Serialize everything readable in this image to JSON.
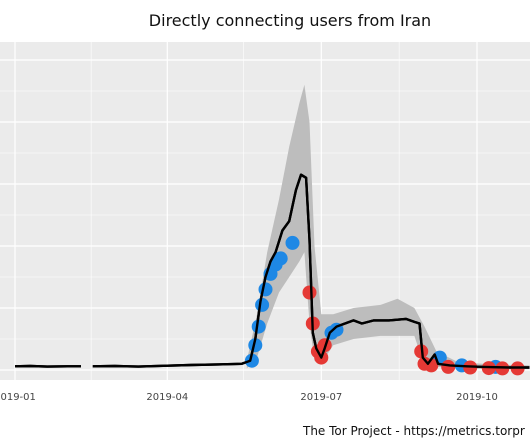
{
  "chart_data": {
    "type": "line",
    "title": "Directly connecting users from Iran",
    "xlabel": "",
    "ylabel": "",
    "caption": "The Tor Project - https://metrics.torpr",
    "x_ticks": [
      "2019-01",
      "2019-04",
      "2019-07",
      "2019-10"
    ],
    "y_tick_labels_visible": false,
    "grid": true,
    "panel_background": "#ebebeb",
    "grid_color": "#ffffff",
    "line_color": "#000000",
    "range_color": "#bdbdbd",
    "colors": {
      "upper_outlier": "#1e88e5",
      "lower_outlier": "#e53935"
    },
    "ylim": [
      0,
      100
    ],
    "series": [
      {
        "type": "line",
        "points": [
          [
            "2019-01-01",
            1.2
          ],
          [
            "2019-01-10",
            1.3
          ],
          [
            "2019-01-20",
            1.1
          ],
          [
            "2019-02-01",
            1.2
          ],
          [
            "2019-02-09",
            1.2
          ],
          [
            "2019-02-13",
            null
          ],
          [
            "2019-02-16",
            1.2
          ],
          [
            "2019-03-01",
            1.3
          ],
          [
            "2019-03-15",
            1.1
          ],
          [
            "2019-04-01",
            1.4
          ],
          [
            "2019-04-15",
            1.6
          ],
          [
            "2019-05-01",
            1.8
          ],
          [
            "2019-05-15",
            2.0
          ],
          [
            "2019-05-20",
            3.0
          ],
          [
            "2019-05-23",
            10.0
          ],
          [
            "2019-05-26",
            22.0
          ],
          [
            "2019-05-29",
            30.0
          ],
          [
            "2019-06-01",
            35.0
          ],
          [
            "2019-06-04",
            38.0
          ],
          [
            "2019-06-08",
            45.0
          ],
          [
            "2019-06-12",
            48.0
          ],
          [
            "2019-06-16",
            58.0
          ],
          [
            "2019-06-19",
            63.0
          ],
          [
            "2019-06-22",
            62.0
          ],
          [
            "2019-06-24",
            42.0
          ],
          [
            "2019-06-26",
            12.0
          ],
          [
            "2019-06-28",
            7.0
          ],
          [
            "2019-07-01",
            4.0
          ],
          [
            "2019-07-03",
            7.0
          ],
          [
            "2019-07-06",
            12.0
          ],
          [
            "2019-07-10",
            14.0
          ],
          [
            "2019-07-15",
            15.0
          ],
          [
            "2019-07-20",
            16.0
          ],
          [
            "2019-07-25",
            15.0
          ],
          [
            "2019-08-01",
            16.0
          ],
          [
            "2019-08-10",
            16.0
          ],
          [
            "2019-08-20",
            16.5
          ],
          [
            "2019-08-25",
            15.5
          ],
          [
            "2019-08-28",
            15.0
          ],
          [
            "2019-08-30",
            4.0
          ],
          [
            "2019-09-02",
            2.0
          ],
          [
            "2019-09-06",
            5.0
          ],
          [
            "2019-09-08",
            2.0
          ],
          [
            "2019-09-15",
            1.5
          ],
          [
            "2019-09-25",
            1.2
          ],
          [
            "2019-10-05",
            1.0
          ],
          [
            "2019-10-20",
            0.8
          ],
          [
            "2019-11-01",
            0.8
          ]
        ]
      },
      {
        "type": "range",
        "points": [
          [
            "2019-05-18",
            0.5,
            3.0
          ],
          [
            "2019-05-24",
            4.0,
            18.0
          ],
          [
            "2019-05-30",
            15.0,
            38.0
          ],
          [
            "2019-06-06",
            25.0,
            55.0
          ],
          [
            "2019-06-12",
            30.0,
            72.0
          ],
          [
            "2019-06-18",
            35.0,
            86.0
          ],
          [
            "2019-06-21",
            38.0,
            92.0
          ],
          [
            "2019-06-24",
            15.0,
            80.0
          ],
          [
            "2019-06-27",
            3.0,
            40.0
          ],
          [
            "2019-07-01",
            2.0,
            18.0
          ],
          [
            "2019-07-08",
            8.0,
            18.0
          ],
          [
            "2019-07-20",
            10.0,
            20.0
          ],
          [
            "2019-08-05",
            11.0,
            21.0
          ],
          [
            "2019-08-15",
            11.0,
            23.0
          ],
          [
            "2019-08-25",
            11.0,
            20.0
          ],
          [
            "2019-08-31",
            1.0,
            14.0
          ],
          [
            "2019-09-07",
            1.0,
            6.0
          ],
          [
            "2019-09-20",
            0.5,
            2.5
          ],
          [
            "2019-10-10",
            0.3,
            1.8
          ],
          [
            "2019-11-01",
            0.3,
            1.5
          ]
        ]
      },
      {
        "type": "outliers",
        "name": "upper",
        "points": [
          [
            "2019-05-21",
            3.0
          ],
          [
            "2019-05-23",
            8.0
          ],
          [
            "2019-05-25",
            14.0
          ],
          [
            "2019-05-27",
            21.0
          ],
          [
            "2019-05-29",
            26.0
          ],
          [
            "2019-06-01",
            31.0
          ],
          [
            "2019-06-04",
            34.0
          ],
          [
            "2019-06-07",
            36.0
          ],
          [
            "2019-06-14",
            41.0
          ],
          [
            "2019-07-07",
            12.0
          ],
          [
            "2019-07-10",
            13.0
          ],
          [
            "2019-09-09",
            4.0
          ],
          [
            "2019-09-22",
            1.5
          ],
          [
            "2019-10-12",
            1.0
          ]
        ]
      },
      {
        "type": "outliers",
        "name": "lower",
        "points": [
          [
            "2019-06-24",
            25.0
          ],
          [
            "2019-06-26",
            15.0
          ],
          [
            "2019-06-29",
            6.0
          ],
          [
            "2019-07-01",
            4.0
          ],
          [
            "2019-07-03",
            8.0
          ],
          [
            "2019-08-29",
            6.0
          ],
          [
            "2019-08-31",
            2.0
          ],
          [
            "2019-09-04",
            1.5
          ],
          [
            "2019-09-14",
            1.0
          ],
          [
            "2019-09-27",
            0.8
          ],
          [
            "2019-10-08",
            0.6
          ],
          [
            "2019-10-16",
            0.5
          ],
          [
            "2019-10-25",
            0.5
          ]
        ]
      }
    ]
  }
}
